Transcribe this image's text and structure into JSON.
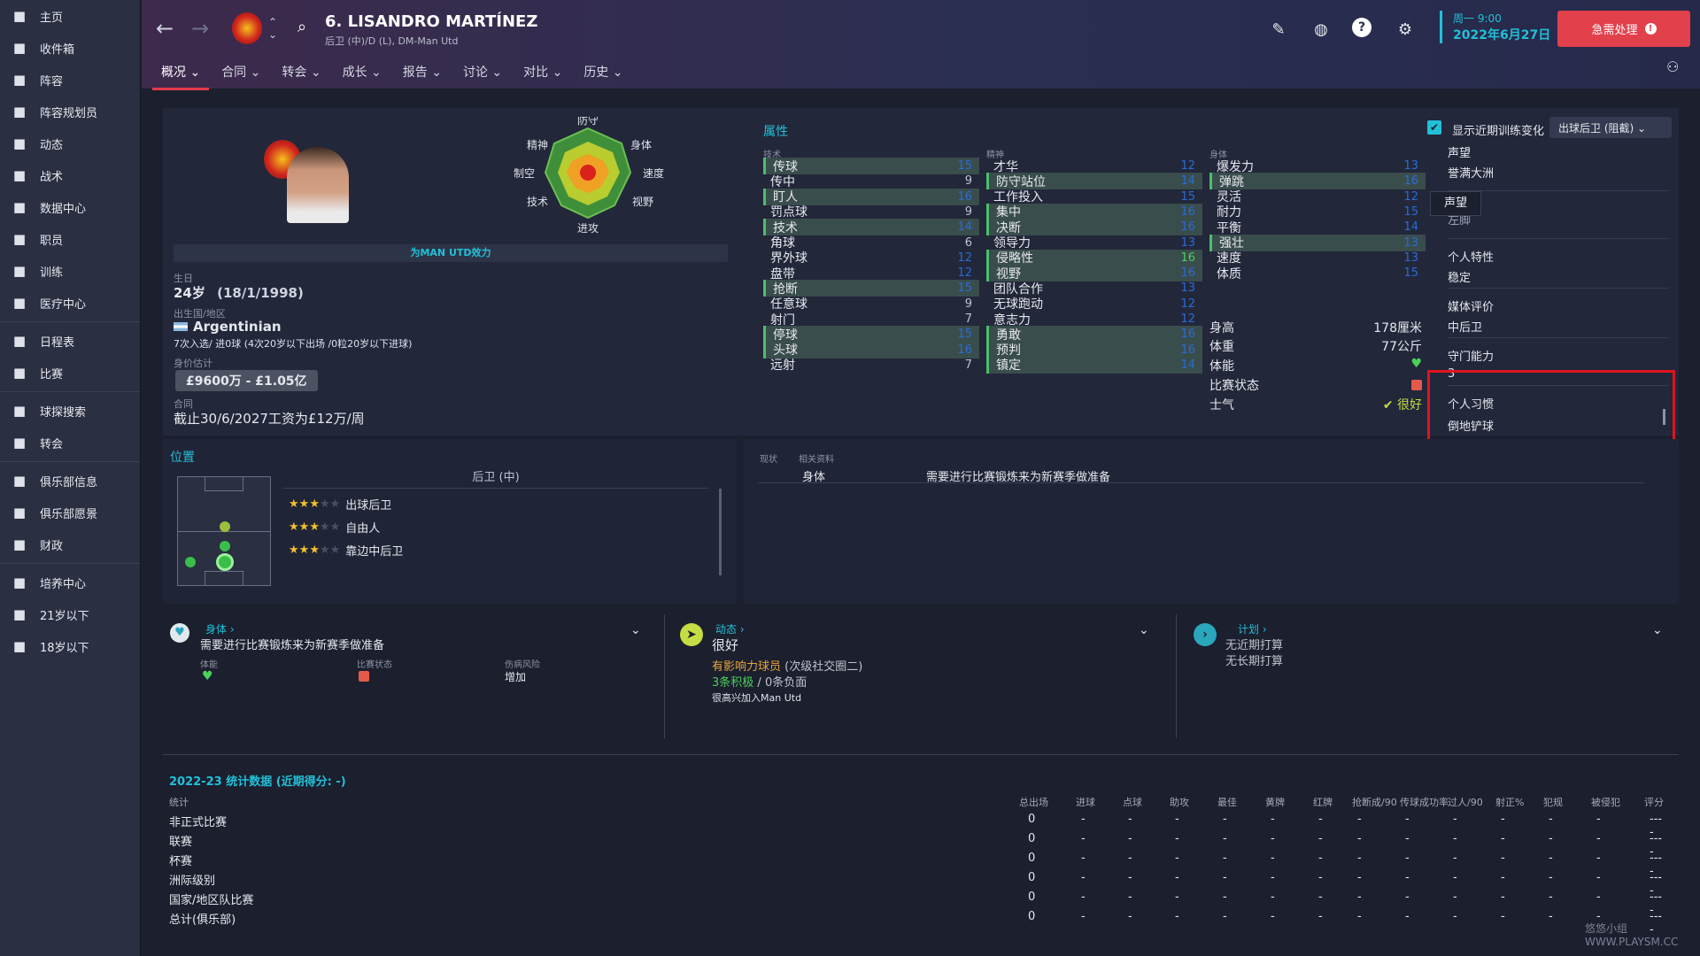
{
  "sidebar": {
    "items": [
      {
        "label": "主页",
        "icon": "home-icon"
      },
      {
        "label": "收件箱",
        "icon": "inbox-icon"
      },
      {
        "label": "阵容",
        "icon": "shirt-icon"
      },
      {
        "label": "阵容规划员",
        "icon": "clipboard-icon"
      },
      {
        "label": "动态",
        "icon": "people-icon"
      },
      {
        "label": "战术",
        "icon": "tactics-icon"
      },
      {
        "label": "数据中心",
        "icon": "data-icon"
      },
      {
        "label": "职员",
        "icon": "staff-icon"
      },
      {
        "label": "训练",
        "icon": "training-icon"
      },
      {
        "label": "医疗中心",
        "icon": "medical-icon"
      },
      {
        "label": "日程表",
        "icon": "calendar-icon"
      },
      {
        "label": "比赛",
        "icon": "trophy-icon"
      },
      {
        "label": "球探搜索",
        "icon": "search-icon"
      },
      {
        "label": "转会",
        "icon": "transfer-icon"
      },
      {
        "label": "俱乐部信息",
        "icon": "shield-icon"
      },
      {
        "label": "俱乐部愿景",
        "icon": "vision-icon"
      },
      {
        "label": "财政",
        "icon": "finance-icon"
      },
      {
        "label": "培养中心",
        "icon": "growth-icon"
      },
      {
        "label": "21岁以下",
        "icon": "u21-icon"
      },
      {
        "label": "18岁以下",
        "icon": "u18-icon"
      }
    ]
  },
  "header": {
    "title": "6. LISANDRO MARTÍNEZ",
    "subtitle": "后卫 (中)/D (L), DM-Man Utd",
    "date_day": "周一 9:00",
    "date": "2022年6月27日",
    "urgent": "急需处理",
    "tabs": [
      "概况",
      "合同",
      "转会",
      "成长",
      "报告",
      "讨论",
      "对比",
      "历史"
    ]
  },
  "profile": {
    "plays_for": "为MAN UTD效力",
    "birth_label": "生日",
    "age": "24岁",
    "dob": "(18/1/1998)",
    "nation_label": "出生国/地区",
    "nation": "Argentinian",
    "caps": "7次入选/ 进0球 (4次20岁以下出场 /0粒20岁以下进球)",
    "value_label": "身价估计",
    "value": "£9600万 - £1.05亿",
    "contract_label": "合同",
    "contract": "截止30/6/2027工资为£12万/周",
    "radar": {
      "top": "防守",
      "tr": "身体",
      "r": "速度",
      "br": "视野",
      "b": "进攻",
      "bl": "技术",
      "l": "制空",
      "tl": "精神"
    }
  },
  "attributes": {
    "title": "属性",
    "show_training": "显示近期训练变化",
    "role": "出球后卫 (阻截)",
    "tech_header": "技术",
    "mental_header": "精神",
    "phys_header": "身体",
    "technical": [
      {
        "name": "传球",
        "value": "15",
        "hl": true
      },
      {
        "name": "传中",
        "value": "9",
        "hl": false
      },
      {
        "name": "盯人",
        "value": "16",
        "hl": true
      },
      {
        "name": "罚点球",
        "value": "9",
        "hl": false
      },
      {
        "name": "技术",
        "value": "14",
        "hl": true
      },
      {
        "name": "角球",
        "value": "6",
        "hl": false
      },
      {
        "name": "界外球",
        "value": "12",
        "hl": false
      },
      {
        "name": "盘带",
        "value": "12",
        "hl": false
      },
      {
        "name": "抢断",
        "value": "15",
        "hl": true
      },
      {
        "name": "任意球",
        "value": "9",
        "hl": false
      },
      {
        "name": "射门",
        "value": "7",
        "hl": false
      },
      {
        "name": "停球",
        "value": "15",
        "hl": true
      },
      {
        "name": "头球",
        "value": "16",
        "hl": true
      },
      {
        "name": "远射",
        "value": "7",
        "hl": false
      }
    ],
    "mental": [
      {
        "name": "才华",
        "value": "12",
        "hl": false
      },
      {
        "name": "防守站位",
        "value": "14",
        "hl": true
      },
      {
        "name": "工作投入",
        "value": "15",
        "hl": false
      },
      {
        "name": "集中",
        "value": "16",
        "hl": true
      },
      {
        "name": "决断",
        "value": "16",
        "hl": true
      },
      {
        "name": "领导力",
        "value": "13",
        "hl": false
      },
      {
        "name": "侵略性",
        "value": "16",
        "hl": true
      },
      {
        "name": "视野",
        "value": "16",
        "hl": true
      },
      {
        "name": "团队合作",
        "value": "13",
        "hl": false
      },
      {
        "name": "无球跑动",
        "value": "12",
        "hl": false
      },
      {
        "name": "意志力",
        "value": "12",
        "hl": false
      },
      {
        "name": "勇敢",
        "value": "16",
        "hl": true
      },
      {
        "name": "预判",
        "value": "16",
        "hl": true
      },
      {
        "name": "镇定",
        "value": "14",
        "hl": true
      }
    ],
    "physical": [
      {
        "name": "爆发力",
        "value": "13",
        "hl": false
      },
      {
        "name": "弹跳",
        "value": "16",
        "hl": true
      },
      {
        "name": "灵活",
        "value": "12",
        "hl": false
      },
      {
        "name": "耐力",
        "value": "15",
        "hl": false
      },
      {
        "name": "平衡",
        "value": "14",
        "hl": false
      },
      {
        "name": "强壮",
        "value": "13",
        "hl": true
      },
      {
        "name": "速度",
        "value": "13",
        "hl": false
      },
      {
        "name": "体质",
        "value": "15",
        "hl": false
      }
    ],
    "height_label": "身高",
    "height": "178厘米",
    "weight_label": "体重",
    "weight": "77公斤",
    "fitness_label": "体能",
    "form_label": "比赛状态",
    "morale_label": "士气",
    "morale": "很好"
  },
  "info_right": {
    "reputation_label": "声望",
    "reputation": "誉满大洲",
    "tooltip": "声望",
    "foot_value": "左脚",
    "personality_label": "个人特性",
    "personality": "稳定",
    "media_label": "媒体评价",
    "media": "中后卫",
    "gk_label": "守门能力",
    "gk": "3",
    "habits_label": "个人习惯",
    "habit": "倒地铲球"
  },
  "positions": {
    "title": "位置",
    "main": "后卫 (中)",
    "roles": [
      {
        "name": "出球后卫",
        "stars": 3
      },
      {
        "name": "自由人",
        "stars": 3
      },
      {
        "name": "靠边中后卫",
        "stars": 3
      }
    ]
  },
  "status": {
    "col1": "现状",
    "col2": "相关资料",
    "category": "身体",
    "desc": "需要进行比赛锻炼来为新赛季做准备"
  },
  "cards": {
    "physical": {
      "title": "身体",
      "desc": "需要进行比赛锻炼来为新赛季做准备",
      "fitness": "体能",
      "form": "比赛状态",
      "risk_label": "伤病风险",
      "risk": "增加"
    },
    "dynamic": {
      "title": "动态",
      "morale": "很好",
      "influence": "有影响力球员",
      "group": "(次级社交圈二)",
      "positive": "3条积极",
      "sep": "/",
      "negative": "0条负面",
      "note": "很高兴加入Man Utd"
    },
    "plans": {
      "title": "计划",
      "short": "无近期打算",
      "long": "无长期打算"
    }
  },
  "stats": {
    "title": "2022-23 统计数据 (近期得分: -)",
    "columns": [
      "统计",
      "总出场",
      "进球",
      "点球",
      "助攻",
      "最佳",
      "黄牌",
      "红牌",
      "抢断成/90",
      "传球成功率",
      "过人/90",
      "射正%",
      "犯规",
      "被侵犯",
      "评分"
    ],
    "rows": [
      {
        "name": "非正式比赛",
        "apps": "0"
      },
      {
        "name": "联赛",
        "apps": "0"
      },
      {
        "name": "杯赛",
        "apps": "0"
      },
      {
        "name": "洲际级别",
        "apps": "0"
      },
      {
        "name": "国家/地区队比赛",
        "apps": "0"
      },
      {
        "name": "总计(俱乐部)",
        "apps": "0"
      }
    ],
    "dash": "-",
    "rating_dash": "----"
  },
  "watermark": "悠悠小组 WWW.PLAYSM.CC",
  "colors": {
    "accent": "#21c0d8",
    "urgent": "#e2404b",
    "highlight": "#3a4d4d",
    "blue_value": "#2a6bd6",
    "green_value": "#49d15a"
  }
}
